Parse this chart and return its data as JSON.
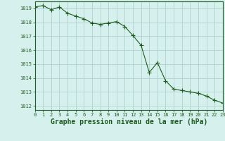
{
  "x": [
    0,
    1,
    2,
    3,
    4,
    5,
    6,
    7,
    8,
    9,
    10,
    11,
    12,
    13,
    14,
    15,
    16,
    17,
    18,
    19,
    20,
    21,
    22,
    23
  ],
  "y": [
    1019.1,
    1019.2,
    1018.9,
    1019.1,
    1018.65,
    1018.45,
    1018.25,
    1017.95,
    1017.85,
    1017.95,
    1018.05,
    1017.7,
    1017.05,
    1016.35,
    1014.4,
    1015.1,
    1013.8,
    1013.2,
    1013.1,
    1013.0,
    1012.9,
    1012.7,
    1012.4,
    1012.2
  ],
  "xlim": [
    0,
    23
  ],
  "ylim": [
    1011.7,
    1019.5
  ],
  "yticks": [
    1012,
    1013,
    1014,
    1015,
    1016,
    1017,
    1018,
    1019
  ],
  "xticks": [
    0,
    1,
    2,
    3,
    4,
    5,
    6,
    7,
    8,
    9,
    10,
    11,
    12,
    13,
    14,
    15,
    16,
    17,
    18,
    19,
    20,
    21,
    22,
    23
  ],
  "line_color": "#1e5c1e",
  "marker_color": "#1e5c1e",
  "bg_color": "#d6f0ee",
  "grid_color": "#a8ccc8",
  "xlabel": "Graphe pression niveau de la mer (hPa)",
  "xlabel_color": "#1e5c1e",
  "tick_color": "#1e5c1e",
  "axis_color": "#1e5c1e",
  "tick_fontsize": 5.0,
  "xlabel_fontsize": 7.0,
  "marker_size": 2.5,
  "linewidth": 0.8
}
